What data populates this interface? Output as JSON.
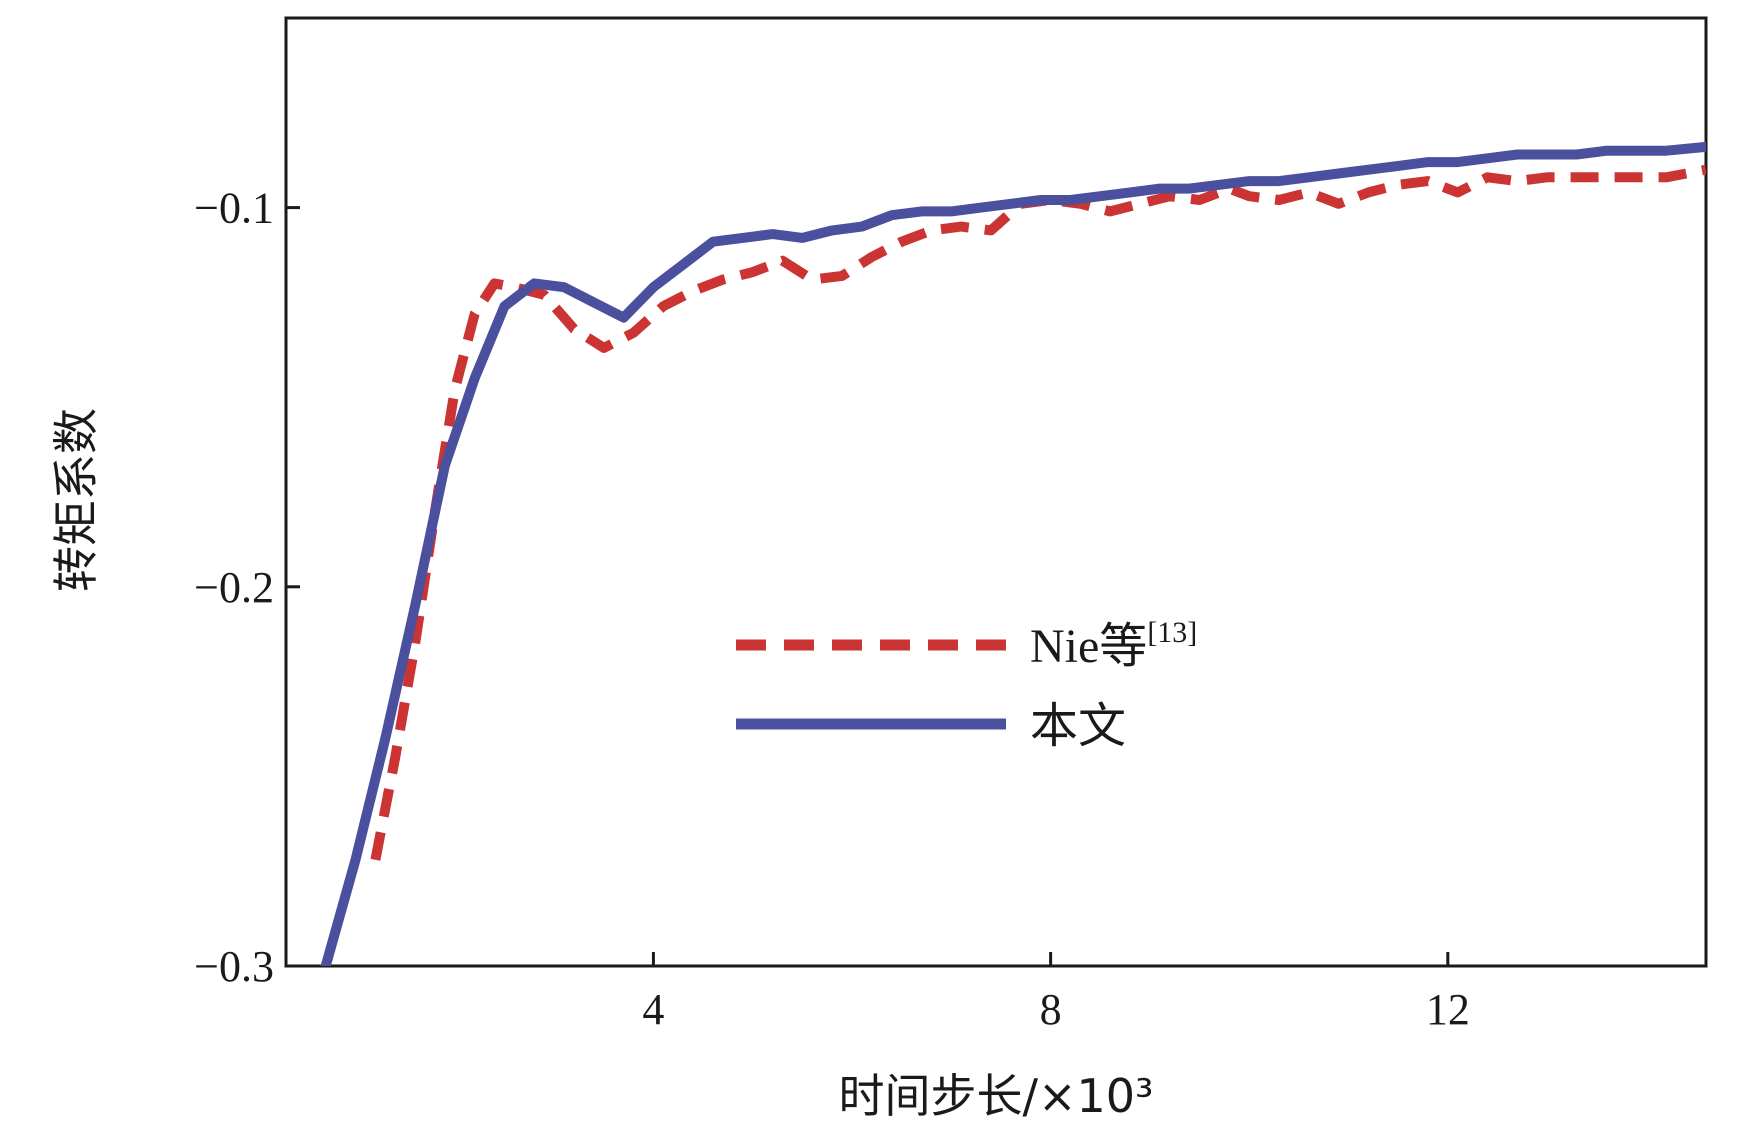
{
  "colors": {
    "nie": "#cc3333",
    "ours": "#4a4f9e",
    "axis": "#1a1a1a"
  },
  "chart_data": {
    "type": "line",
    "xlabel": "时间步长/×10³",
    "ylabel": "转矩系数",
    "xlim": [
      0.3,
      14.6
    ],
    "ylim": [
      -0.3,
      -0.05
    ],
    "xticks": [
      {
        "value": 4,
        "label": "4"
      },
      {
        "value": 8,
        "label": "8"
      },
      {
        "value": 12,
        "label": "12"
      }
    ],
    "yticks": [
      {
        "value": -0.1,
        "label": "−0.1"
      },
      {
        "value": -0.2,
        "label": "−0.2"
      },
      {
        "value": -0.3,
        "label": "−0.3"
      }
    ],
    "legend": {
      "position": "center",
      "entries": [
        {
          "series": 0,
          "text": "Nie等",
          "sup": "[13]"
        },
        {
          "series": 1,
          "text": "本文",
          "sup": ""
        }
      ]
    },
    "series": [
      {
        "name": "Nie等[13]",
        "style": "dashed",
        "color": "#cc3333",
        "x": [
          1.2,
          1.4,
          1.6,
          1.8,
          2.0,
          2.2,
          2.4,
          2.6,
          2.9,
          3.2,
          3.5,
          3.8,
          4.1,
          4.4,
          4.7,
          5.0,
          5.3,
          5.6,
          5.9,
          6.2,
          6.5,
          6.8,
          7.1,
          7.4,
          7.7,
          8.0,
          8.3,
          8.6,
          8.9,
          9.2,
          9.5,
          9.8,
          10.0,
          10.3,
          10.6,
          10.9,
          11.2,
          11.5,
          11.8,
          12.1,
          12.4,
          12.7,
          13.0,
          13.3,
          13.6,
          13.9,
          14.2,
          14.6
        ],
        "values": [
          -0.272,
          -0.245,
          -0.215,
          -0.18,
          -0.148,
          -0.128,
          -0.12,
          -0.121,
          -0.123,
          -0.132,
          -0.137,
          -0.133,
          -0.126,
          -0.122,
          -0.119,
          -0.117,
          -0.114,
          -0.119,
          -0.118,
          -0.113,
          -0.109,
          -0.106,
          -0.105,
          -0.106,
          -0.099,
          -0.098,
          -0.099,
          -0.101,
          -0.099,
          -0.097,
          -0.098,
          -0.095,
          -0.097,
          -0.098,
          -0.096,
          -0.099,
          -0.096,
          -0.094,
          -0.093,
          -0.096,
          -0.092,
          -0.093,
          -0.092,
          -0.092,
          -0.092,
          -0.092,
          -0.092,
          -0.09
        ]
      },
      {
        "name": "本文",
        "style": "solid",
        "color": "#4a4f9e",
        "x": [
          0.7,
          1.0,
          1.3,
          1.6,
          1.9,
          2.2,
          2.5,
          2.8,
          3.1,
          3.4,
          3.7,
          4.0,
          4.3,
          4.6,
          4.9,
          5.2,
          5.5,
          5.8,
          6.1,
          6.4,
          6.7,
          7.0,
          7.3,
          7.6,
          7.9,
          8.2,
          8.5,
          8.8,
          9.1,
          9.4,
          9.7,
          10.0,
          10.3,
          10.6,
          10.9,
          11.2,
          11.5,
          11.8,
          12.1,
          12.4,
          12.7,
          13.0,
          13.3,
          13.6,
          13.9,
          14.2,
          14.6
        ],
        "values": [
          -0.3,
          -0.272,
          -0.24,
          -0.205,
          -0.168,
          -0.145,
          -0.126,
          -0.12,
          -0.121,
          -0.125,
          -0.129,
          -0.121,
          -0.115,
          -0.109,
          -0.108,
          -0.107,
          -0.108,
          -0.106,
          -0.105,
          -0.102,
          -0.101,
          -0.101,
          -0.1,
          -0.099,
          -0.098,
          -0.098,
          -0.097,
          -0.096,
          -0.095,
          -0.095,
          -0.094,
          -0.093,
          -0.093,
          -0.092,
          -0.091,
          -0.09,
          -0.089,
          -0.088,
          -0.088,
          -0.087,
          -0.086,
          -0.086,
          -0.086,
          -0.085,
          -0.085,
          -0.085,
          -0.084
        ]
      }
    ]
  }
}
